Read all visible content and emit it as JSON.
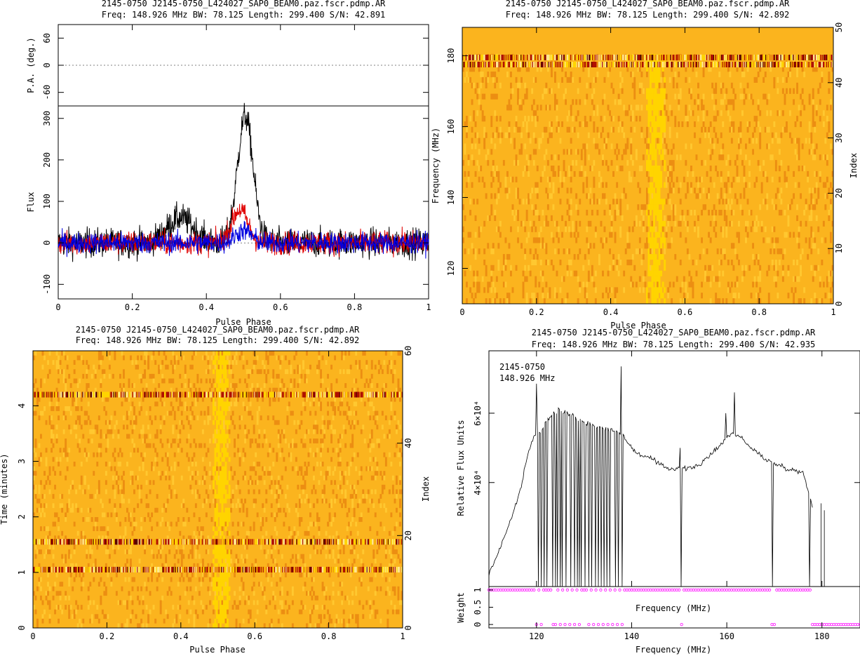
{
  "panels": {
    "profile": {
      "title_line1": "2145-0750 J2145-0750_L424027_SAP0_BEAM0.paz.fscr.pdmp.AR",
      "title_line2": "Freq: 148.926 MHz BW: 78.125 Length: 299.400 S/N: 42.891",
      "pa_ylabel": "P.A. (deg.)",
      "flux_ylabel": "Flux",
      "xlabel": "Pulse Phase"
    },
    "freq_phase": {
      "title_line1": "2145-0750 J2145-0750_L424027_SAP0_BEAM0.paz.fscr.pdmp.AR",
      "title_line2": "Freq: 148.926 MHz BW: 78.125 Length: 299.400 S/N: 42.892",
      "ylabel": "Frequency (MHz)",
      "y2label": "Index",
      "xlabel": "Pulse Phase"
    },
    "time_phase": {
      "title_line1": "2145-0750 J2145-0750_L424027_SAP0_BEAM0.paz.fscr.pdmp.AR",
      "title_line2": "Freq: 148.926 MHz BW: 78.125 Length: 299.400 S/N: 42.892",
      "ylabel": "Time (minutes)",
      "y2label": "Index",
      "xlabel": "Pulse Phase"
    },
    "bandpass": {
      "title_line1": "2145-0750 J2145-0750_L424027_SAP0_BEAM0.paz.fscr.pdmp.AR",
      "title_line2": "Freq: 148.926 MHz BW: 78.125 Length: 299.400 S/N: 42.935",
      "annot_line1": "2145-0750",
      "annot_line2": "148.926 MHz",
      "ylabel": "Relative Flux Units",
      "mid_xlabel": "Frequency (MHz)",
      "weight_ylabel": "Weight",
      "xlabel": "Frequency (MHz)"
    }
  },
  "chart_data": [
    {
      "type": "line",
      "name": "pulse-profile",
      "x_range": [
        0,
        1
      ],
      "x_ticks": [
        "0",
        "0.2",
        "0.4",
        "0.6",
        "0.8",
        "1"
      ],
      "pa_ylim": [
        -90,
        90
      ],
      "pa_ticks": [
        "-60",
        "0",
        "60"
      ],
      "flux_ylim": [
        -135,
        330
      ],
      "flux_ticks": [
        "-100",
        "0",
        "100",
        "200",
        "300"
      ],
      "series": [
        {
          "color": "#000000",
          "peak_phase": 0.505,
          "peak_value": 305,
          "noise": 25
        },
        {
          "color": "#e00000",
          "peak_phase": 0.49,
          "peak_value": 80,
          "noise": 20
        },
        {
          "color": "#0000e0",
          "peak_phase": 0.5,
          "peak_value": 30,
          "noise": 18
        }
      ],
      "grid": false
    },
    {
      "type": "heatmap",
      "name": "frequency-vs-phase",
      "x_range": [
        0,
        1
      ],
      "x_ticks": [
        "0",
        "0.2",
        "0.4",
        "0.6",
        "0.8",
        "1"
      ],
      "y_range": [
        110,
        188
      ],
      "y_ticks": [
        "120",
        "140",
        "160",
        "180"
      ],
      "y2_range": [
        0,
        50
      ],
      "y2_ticks": [
        "0",
        "10",
        "20",
        "30",
        "40",
        "50"
      ],
      "pulse_phase": 0.52,
      "rfi_rows_mhz": [
        179.5,
        177.5
      ],
      "colormap": [
        "#ffd400",
        "#fbb41e",
        "#ec8e12",
        "#b01000",
        "#5a0000"
      ]
    },
    {
      "type": "heatmap",
      "name": "time-vs-phase",
      "x_range": [
        0,
        1
      ],
      "x_ticks": [
        "0",
        "0.2",
        "0.4",
        "0.6",
        "0.8",
        "1"
      ],
      "y_range": [
        0,
        4.99
      ],
      "y_ticks": [
        "0",
        "1",
        "2",
        "3",
        "4"
      ],
      "y2_range": [
        0,
        60
      ],
      "y2_ticks": [
        "0",
        "20",
        "40",
        "60"
      ],
      "pulse_phase": 0.51,
      "rfi_rows_min": [
        4.2,
        1.55,
        1.05
      ],
      "colormap": [
        "#ffd400",
        "#fbb41e",
        "#ec8e12",
        "#b01000",
        "#5a0000"
      ]
    },
    {
      "type": "line",
      "name": "bandpass",
      "x_range": [
        110,
        188
      ],
      "x_ticks": [
        "120",
        "140",
        "160",
        "180"
      ],
      "y_ylim": [
        10000,
        78000
      ],
      "y_ticks": [
        "4×10⁴",
        "6×10⁴"
      ],
      "spectrum": [
        [
          110,
          13500
        ],
        [
          112,
          20000
        ],
        [
          114,
          27000
        ],
        [
          116,
          35000
        ],
        [
          117,
          40000
        ],
        [
          118,
          47000
        ],
        [
          119,
          52000
        ],
        [
          120,
          54000
        ],
        [
          121,
          55000
        ],
        [
          122,
          57500
        ],
        [
          123,
          59000
        ],
        [
          124,
          60500
        ],
        [
          125,
          61000
        ],
        [
          126,
          60500
        ],
        [
          127,
          60000
        ],
        [
          128,
          59000
        ],
        [
          129,
          58000
        ],
        [
          130,
          57500
        ],
        [
          131,
          57000
        ],
        [
          132,
          56500
        ],
        [
          133,
          56000
        ],
        [
          134,
          56000
        ],
        [
          135,
          55500
        ],
        [
          136,
          55000
        ],
        [
          137,
          54500
        ],
        [
          138,
          54000
        ],
        [
          139,
          52000
        ],
        [
          140,
          50000
        ],
        [
          141,
          48500
        ],
        [
          142,
          48000
        ],
        [
          143,
          47500
        ],
        [
          144,
          47000
        ],
        [
          145,
          46000
        ],
        [
          146,
          45000
        ],
        [
          147,
          44500
        ],
        [
          148,
          44000
        ],
        [
          149,
          44000
        ],
        [
          150,
          44500
        ],
        [
          151,
          44000
        ],
        [
          152,
          44000
        ],
        [
          153,
          44500
        ],
        [
          154,
          45000
        ],
        [
          155,
          46000
        ],
        [
          156,
          47000
        ],
        [
          157,
          48500
        ],
        [
          158,
          50000
        ],
        [
          159,
          51500
        ],
        [
          160,
          53000
        ],
        [
          161,
          54000
        ],
        [
          162,
          54000
        ],
        [
          163,
          53000
        ],
        [
          164,
          51500
        ],
        [
          165,
          50000
        ],
        [
          166,
          49000
        ],
        [
          167,
          48000
        ],
        [
          168,
          47000
        ],
        [
          169,
          46000
        ],
        [
          170,
          45500
        ],
        [
          171,
          45000
        ],
        [
          172,
          44500
        ],
        [
          173,
          44000
        ],
        [
          174,
          43500
        ],
        [
          175,
          43000
        ],
        [
          176,
          43500
        ],
        [
          177,
          38000
        ],
        [
          178,
          33000
        ]
      ],
      "spikes": [
        [
          120,
          68500
        ],
        [
          137.7,
          73500
        ],
        [
          150.2,
          50000
        ],
        [
          159.8,
          60000
        ],
        [
          161.6,
          66000
        ],
        [
          179.8,
          34000
        ],
        [
          180.5,
          32000
        ]
      ],
      "dropouts_mhz": [
        120.5,
        121,
        121.6,
        122.2,
        123.5,
        124,
        124.4,
        125,
        125.5,
        126.3,
        127.2,
        128,
        128.6,
        129,
        129.4,
        130.2,
        131,
        131.6,
        132.4,
        133,
        133.6,
        134.2,
        134.8,
        135.4,
        136.5,
        137.2,
        137.9,
        150.4,
        169.6,
        177.3,
        179.2,
        180.2
      ],
      "weight_ylim": [
        -0.1,
        1.1
      ],
      "weight_ticks": [
        "0",
        "0.5",
        "1"
      ],
      "zero_weight_mhz": [
        120,
        121,
        123.5,
        124,
        125,
        126,
        127,
        128,
        129,
        131,
        132,
        133,
        134,
        135,
        136,
        137,
        138,
        150.5,
        169.5,
        170,
        178,
        179,
        180,
        181,
        182,
        183,
        184,
        185,
        186,
        187
      ],
      "marker_color": "#ff00ff"
    }
  ]
}
